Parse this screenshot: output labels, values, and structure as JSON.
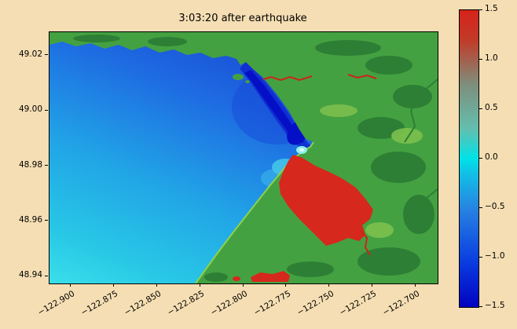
{
  "figure": {
    "background_color": "#f5deb3"
  },
  "chart_data": {
    "type": "heatmap",
    "title": "3:03:20 after earthquake",
    "xlabel": "",
    "ylabel": "",
    "xlim": [
      -122.9125,
      -122.6875
    ],
    "ylim": [
      48.9375,
      49.0285
    ],
    "grid": false,
    "x_tick_values": [
      -122.9,
      -122.875,
      -122.85,
      -122.825,
      -122.8,
      -122.775,
      -122.75,
      -122.725,
      -122.7
    ],
    "x_tick_labels": [
      "−122.900",
      "−122.875",
      "−122.850",
      "−122.825",
      "−122.800",
      "−122.775",
      "−122.750",
      "−122.725",
      "−122.700"
    ],
    "y_tick_values": [
      48.94,
      48.96,
      48.98,
      49.0,
      49.02
    ],
    "y_tick_labels": [
      "48.94",
      "48.96",
      "48.98",
      "49.00",
      "49.02"
    ],
    "colorbar": {
      "min": -1.5,
      "max": 1.5,
      "tick_values": [
        1.5,
        1.0,
        0.5,
        0.0,
        -0.5,
        -1.0,
        -1.5
      ],
      "tick_labels": [
        "1.5",
        "1.0",
        "0.5",
        "0.0",
        "−0.5",
        "−1.0",
        "−1.5"
      ],
      "gradient_stops_bottom_to_top": [
        "#0202c0 0%",
        "#0a3ce0 15%",
        "#2782e2 33%",
        "#12c0e6 45%",
        "#00e2e8 50%",
        "#63bfae 60%",
        "#7f8e7c 75%",
        "#c23a28 90%",
        "#d6231a 100%"
      ]
    },
    "palette": {
      "background": "#f5deb3",
      "land_green": "#44a141",
      "land_dark_green": "#2d7f35",
      "shore_highlight": "#8fd14f",
      "ocean_deep_blue": "#1740d2",
      "ocean_cyan": "#3adfe9",
      "nearshore_drawdown_blue": "#0510c6",
      "flood_red": "#d6281c"
    },
    "regions": [
      {
        "label": "offshore sea-surface drawdown (ocean, upper left)",
        "approx_value": -0.6
      },
      {
        "label": "nearshore deep drawdown along coast near estuary",
        "approx_value": -1.4
      },
      {
        "label": "inundated land / flooding (large red zone center-right)",
        "approx_value": 1.5
      },
      {
        "label": "small flooded patch at bottom center",
        "approx_value": 1.5
      },
      {
        "label": "thin flooded river channels (top and right)",
        "approx_value": 1.5
      },
      {
        "label": "dry land (green, top strip and right half)",
        "approx_value": 0
      }
    ]
  }
}
